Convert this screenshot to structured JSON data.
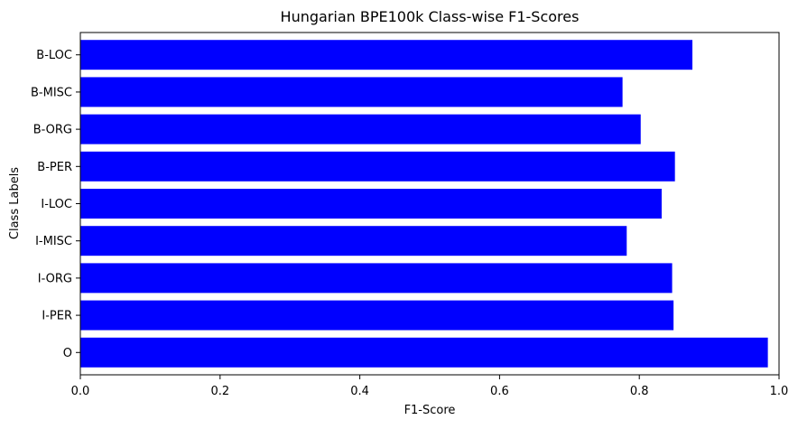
{
  "chart_data": {
    "type": "bar",
    "orientation": "horizontal",
    "title": "Hungarian BPE100k Class-wise F1-Scores",
    "xlabel": "F1-Score",
    "ylabel": "Class Labels",
    "xlim": [
      0.0,
      1.0
    ],
    "xticks": [
      "0.0",
      "0.2",
      "0.4",
      "0.6",
      "0.8",
      "1.0"
    ],
    "xtick_values": [
      0.0,
      0.2,
      0.4,
      0.6,
      0.8,
      1.0
    ],
    "categories": [
      "B-LOC",
      "B-MISC",
      "B-ORG",
      "B-PER",
      "I-LOC",
      "I-MISC",
      "I-ORG",
      "I-PER",
      "O"
    ],
    "values": [
      0.876,
      0.776,
      0.802,
      0.851,
      0.832,
      0.782,
      0.847,
      0.849,
      0.984
    ],
    "bar_color": "#0000ff",
    "grid": false,
    "legend": null
  }
}
